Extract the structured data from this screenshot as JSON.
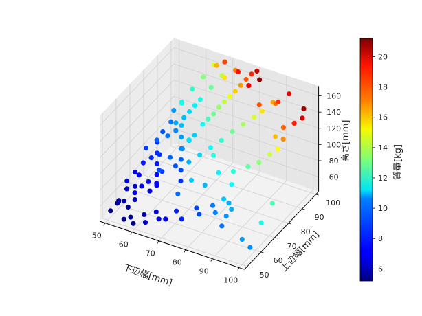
{
  "chart_data": {
    "type": "scatter3d",
    "xlabel": "下辺幅[mm]",
    "ylabel": "上辺幅[mm]",
    "zlabel": "高さ[mm]",
    "colorbar_label": "質量[kg]",
    "colormap": "jet",
    "xlim": [
      48,
      102
    ],
    "ylim": [
      48,
      102
    ],
    "zlim": [
      42,
      172
    ],
    "clim": [
      5.2,
      21.2
    ],
    "xticks": [
      "50",
      "60",
      "70",
      "80",
      "90",
      "100"
    ],
    "yticks": [
      "50",
      "60",
      "70",
      "80",
      "90",
      "100"
    ],
    "zticks": [
      "60",
      "80",
      "100",
      "120",
      "140",
      "160"
    ],
    "cticks": [
      "6",
      "8",
      "10",
      "12",
      "14",
      "16",
      "18",
      "20"
    ],
    "grid": true,
    "points": [
      [
        50,
        52,
        50,
        5.4
      ],
      [
        51,
        55,
        55,
        5.6
      ],
      [
        52,
        54,
        60,
        5.8
      ],
      [
        50,
        58,
        52,
        5.5
      ],
      [
        53,
        56,
        58,
        5.9
      ],
      [
        52,
        60,
        65,
        6.2
      ],
      [
        54,
        57,
        50,
        5.7
      ],
      [
        51,
        62,
        70,
        6.4
      ],
      [
        55,
        60,
        55,
        6.0
      ],
      [
        53,
        64,
        62,
        6.3
      ],
      [
        56,
        58,
        68,
        6.8
      ],
      [
        52,
        66,
        75,
        6.9
      ],
      [
        55,
        63,
        80,
        7.2
      ],
      [
        57,
        61,
        72,
        7.0
      ],
      [
        54,
        68,
        85,
        7.5
      ],
      [
        58,
        65,
        60,
        6.6
      ],
      [
        56,
        70,
        90,
        7.9
      ],
      [
        59,
        62,
        78,
        7.4
      ],
      [
        53,
        72,
        95,
        8.2
      ],
      [
        60,
        66,
        70,
        7.3
      ],
      [
        57,
        74,
        88,
        8.0
      ],
      [
        61,
        68,
        82,
        8.1
      ],
      [
        55,
        76,
        100,
        8.6
      ],
      [
        62,
        64,
        92,
        8.4
      ],
      [
        58,
        78,
        105,
        9.0
      ],
      [
        63,
        70,
        98,
        8.8
      ],
      [
        60,
        80,
        110,
        9.3
      ],
      [
        64,
        72,
        85,
        8.5
      ],
      [
        59,
        82,
        115,
        9.8
      ],
      [
        65,
        75,
        102,
        9.4
      ],
      [
        61,
        84,
        120,
        10.2
      ],
      [
        66,
        78,
        108,
        10.0
      ],
      [
        62,
        86,
        125,
        10.6
      ],
      [
        67,
        80,
        112,
        10.5
      ],
      [
        63,
        88,
        130,
        11.0
      ],
      [
        68,
        74,
        118,
        10.8
      ],
      [
        64,
        90,
        135,
        11.5
      ],
      [
        69,
        82,
        124,
        11.4
      ],
      [
        60,
        92,
        140,
        12.0
      ],
      [
        70,
        84,
        128,
        12.2
      ],
      [
        66,
        94,
        145,
        12.8
      ],
      [
        71,
        86,
        132,
        12.9
      ],
      [
        62,
        96,
        150,
        13.3
      ],
      [
        72,
        88,
        138,
        13.6
      ],
      [
        68,
        98,
        155,
        14.0
      ],
      [
        73,
        90,
        142,
        14.2
      ],
      [
        64,
        100,
        160,
        14.6
      ],
      [
        74,
        92,
        146,
        15.0
      ],
      [
        70,
        96,
        158,
        15.6
      ],
      [
        75,
        94,
        150,
        16.0
      ],
      [
        66,
        98,
        165,
        16.4
      ],
      [
        76,
        96,
        155,
        16.8
      ],
      [
        72,
        100,
        162,
        17.2
      ],
      [
        77,
        98,
        160,
        17.8
      ],
      [
        68,
        100,
        168,
        18.2
      ],
      [
        78,
        100,
        164,
        18.6
      ],
      [
        74,
        98,
        166,
        19.0
      ],
      [
        79,
        96,
        158,
        19.4
      ],
      [
        80,
        100,
        170,
        20.2
      ],
      [
        82,
        98,
        165,
        21.0
      ],
      [
        55,
        52,
        45,
        5.3
      ],
      [
        57,
        53,
        48,
        5.5
      ],
      [
        59,
        51,
        46,
        5.4
      ],
      [
        61,
        55,
        52,
        6.0
      ],
      [
        63,
        52,
        50,
        6.1
      ],
      [
        65,
        56,
        58,
        6.7
      ],
      [
        67,
        54,
        55,
        6.6
      ],
      [
        70,
        53,
        60,
        7.1
      ],
      [
        72,
        57,
        65,
        7.6
      ],
      [
        75,
        55,
        62,
        7.7
      ],
      [
        78,
        60,
        70,
        8.3
      ],
      [
        80,
        58,
        68,
        8.4
      ],
      [
        83,
        62,
        75,
        9.1
      ],
      [
        85,
        60,
        72,
        9.2
      ],
      [
        88,
        64,
        80,
        9.9
      ],
      [
        90,
        62,
        78,
        10.0
      ],
      [
        86,
        70,
        90,
        11.2
      ],
      [
        84,
        75,
        95,
        11.8
      ],
      [
        88,
        78,
        100,
        12.6
      ],
      [
        91,
        80,
        105,
        13.4
      ],
      [
        93,
        84,
        110,
        14.4
      ],
      [
        95,
        86,
        115,
        15.2
      ],
      [
        92,
        90,
        120,
        16.2
      ],
      [
        96,
        88,
        125,
        17.0
      ],
      [
        94,
        92,
        130,
        17.6
      ],
      [
        97,
        94,
        135,
        18.8
      ],
      [
        99,
        96,
        140,
        19.8
      ],
      [
        98,
        99,
        145,
        20.6
      ],
      [
        96,
        80,
        60,
        12.4
      ],
      [
        97,
        70,
        55,
        11.6
      ],
      [
        95,
        60,
        50,
        9.6
      ],
      [
        99,
        58,
        48,
        9.4
      ],
      [
        90,
        55,
        70,
        9.0
      ],
      [
        86,
        66,
        58,
        9.5
      ],
      [
        82,
        72,
        64,
        10.3
      ],
      [
        78,
        76,
        85,
        11.0
      ],
      [
        74,
        80,
        95,
        11.7
      ],
      [
        76,
        70,
        78,
        10.1
      ],
      [
        73,
        66,
        88,
        10.4
      ],
      [
        70,
        62,
        75,
        8.9
      ],
      [
        58,
        70,
        58,
        7.1
      ],
      [
        56,
        74,
        62,
        7.3
      ],
      [
        54,
        78,
        66,
        7.6
      ],
      [
        52,
        82,
        70,
        7.8
      ],
      [
        50,
        86,
        74,
        8.0
      ],
      [
        50,
        90,
        80,
        8.5
      ],
      [
        51,
        94,
        86,
        9.1
      ],
      [
        50,
        98,
        92,
        9.6
      ],
      [
        52,
        100,
        100,
        10.3
      ],
      [
        54,
        96,
        110,
        11.1
      ],
      [
        56,
        92,
        118,
        11.6
      ],
      [
        58,
        88,
        100,
        10.2
      ],
      [
        60,
        84,
        95,
        9.7
      ],
      [
        62,
        80,
        90,
        9.2
      ],
      [
        64,
        76,
        86,
        8.8
      ],
      [
        66,
        72,
        82,
        8.4
      ],
      [
        68,
        68,
        78,
        8.0
      ],
      [
        70,
        70,
        100,
        10.0
      ],
      [
        72,
        74,
        104,
        10.6
      ],
      [
        74,
        78,
        108,
        11.3
      ],
      [
        76,
        82,
        112,
        12.0
      ],
      [
        78,
        86,
        118,
        12.9
      ],
      [
        80,
        90,
        122,
        13.8
      ],
      [
        82,
        94,
        126,
        14.6
      ],
      [
        84,
        96,
        132,
        15.6
      ],
      [
        86,
        100,
        138,
        16.6
      ],
      [
        88,
        98,
        142,
        17.4
      ],
      [
        90,
        96,
        150,
        18.4
      ],
      [
        92,
        100,
        155,
        19.6
      ],
      [
        85,
        92,
        148,
        17.9
      ]
    ]
  }
}
